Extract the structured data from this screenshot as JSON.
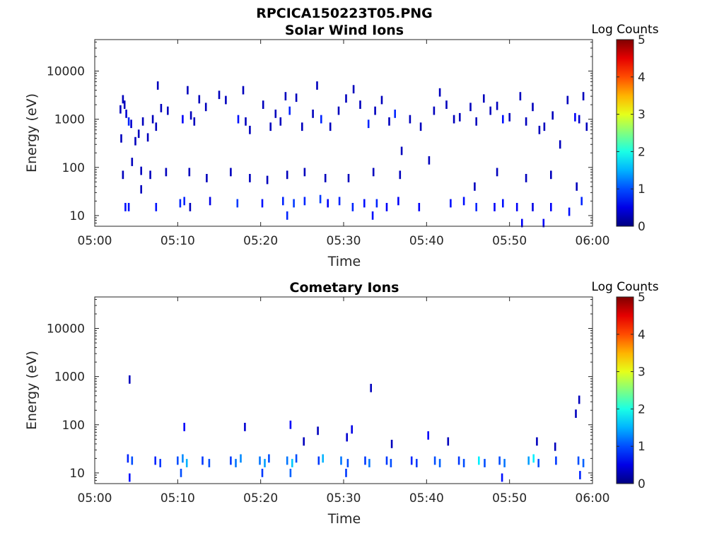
{
  "figure_title": "RPCICA150223T05.PNG",
  "chart_data": [
    {
      "type": "heatmap",
      "title": "Solar Wind Ions",
      "xlabel": "Time",
      "ylabel": "Energy (eV)",
      "x_ticks": [
        "05:00",
        "05:10",
        "05:20",
        "05:30",
        "05:40",
        "05:50",
        "06:00"
      ],
      "xlim_minutes": [
        0,
        60
      ],
      "y_ticks": [
        "10",
        "100",
        "1000",
        "10000"
      ],
      "y_scale": "log",
      "ylim": [
        6,
        45000
      ],
      "colorbar": {
        "label": "Log Counts",
        "ticks": [
          "0",
          "1",
          "2",
          "3",
          "4",
          "5"
        ],
        "range": [
          0,
          5
        ],
        "colormap": "jet"
      },
      "cells": [
        [
          3.1,
          1600,
          0.3
        ],
        [
          3.4,
          2600,
          0.3
        ],
        [
          3.6,
          2000,
          0.3
        ],
        [
          3.8,
          1300,
          0.4
        ],
        [
          4.1,
          900,
          0.8
        ],
        [
          4.4,
          800,
          0.4
        ],
        [
          3.2,
          400,
          0.3
        ],
        [
          4.9,
          350,
          0.3
        ],
        [
          5.3,
          500,
          0.3
        ],
        [
          5.8,
          900,
          0.3
        ],
        [
          6.4,
          420,
          0.3
        ],
        [
          7.0,
          1000,
          0.3
        ],
        [
          7.4,
          700,
          0.3
        ],
        [
          7.6,
          5000,
          0.3
        ],
        [
          8.0,
          1700,
          0.3
        ],
        [
          8.8,
          1500,
          0.3
        ],
        [
          10.6,
          1000,
          0.6
        ],
        [
          11.2,
          4000,
          0.3
        ],
        [
          11.6,
          1200,
          0.3
        ],
        [
          12.0,
          900,
          0.3
        ],
        [
          12.6,
          2600,
          0.3
        ],
        [
          13.4,
          1800,
          0.3
        ],
        [
          15.0,
          3200,
          0.3
        ],
        [
          15.8,
          2500,
          0.3
        ],
        [
          17.3,
          1000,
          0.7
        ],
        [
          17.9,
          4000,
          0.3
        ],
        [
          18.2,
          900,
          0.3
        ],
        [
          18.7,
          600,
          0.3
        ],
        [
          20.3,
          2000,
          0.3
        ],
        [
          21.2,
          700,
          0.3
        ],
        [
          21.8,
          1300,
          0.3
        ],
        [
          22.4,
          900,
          0.3
        ],
        [
          23.0,
          3000,
          0.3
        ],
        [
          23.5,
          1500,
          0.8
        ],
        [
          24.3,
          2800,
          0.3
        ],
        [
          25.0,
          700,
          0.3
        ],
        [
          26.3,
          1300,
          0.3
        ],
        [
          26.8,
          5000,
          0.3
        ],
        [
          27.3,
          1000,
          0.8
        ],
        [
          28.4,
          700,
          0.3
        ],
        [
          29.4,
          1500,
          0.3
        ],
        [
          30.3,
          2700,
          0.3
        ],
        [
          31.2,
          4200,
          0.3
        ],
        [
          32.0,
          2000,
          0.3
        ],
        [
          33.0,
          800,
          0.8
        ],
        [
          33.8,
          1500,
          0.3
        ],
        [
          34.6,
          2500,
          0.3
        ],
        [
          35.5,
          900,
          0.3
        ],
        [
          36.2,
          1300,
          0.8
        ],
        [
          37.0,
          220,
          0.3
        ],
        [
          38.0,
          1000,
          0.3
        ],
        [
          39.3,
          700,
          0.3
        ],
        [
          40.3,
          140,
          0.3
        ],
        [
          40.9,
          1500,
          0.3
        ],
        [
          41.6,
          3600,
          0.3
        ],
        [
          42.4,
          2000,
          0.3
        ],
        [
          43.3,
          1000,
          0.3
        ],
        [
          44.0,
          1100,
          0.3
        ],
        [
          45.3,
          1800,
          0.3
        ],
        [
          46.0,
          900,
          0.3
        ],
        [
          46.9,
          2700,
          0.3
        ],
        [
          47.7,
          1500,
          0.3
        ],
        [
          48.5,
          1900,
          0.3
        ],
        [
          49.2,
          1000,
          0.7
        ],
        [
          50.0,
          1100,
          0.3
        ],
        [
          51.3,
          3000,
          0.3
        ],
        [
          52.0,
          900,
          0.3
        ],
        [
          52.8,
          1800,
          0.3
        ],
        [
          53.6,
          600,
          0.3
        ],
        [
          54.2,
          700,
          0.3
        ],
        [
          55.2,
          1200,
          0.3
        ],
        [
          56.1,
          300,
          0.3
        ],
        [
          57.0,
          2500,
          0.3
        ],
        [
          57.9,
          1100,
          0.6
        ],
        [
          58.4,
          1000,
          0.4
        ],
        [
          58.9,
          3000,
          0.3
        ],
        [
          59.3,
          700,
          0.3
        ],
        [
          3.4,
          70,
          0.3
        ],
        [
          4.5,
          130,
          0.3
        ],
        [
          5.6,
          85,
          0.3
        ],
        [
          6.7,
          70,
          0.3
        ],
        [
          8.6,
          80,
          0.3
        ],
        [
          11.4,
          80,
          0.3
        ],
        [
          13.5,
          60,
          0.3
        ],
        [
          16.4,
          80,
          0.3
        ],
        [
          18.7,
          60,
          0.3
        ],
        [
          20.8,
          55,
          0.3
        ],
        [
          23.2,
          70,
          0.3
        ],
        [
          25.3,
          80,
          0.3
        ],
        [
          27.8,
          60,
          0.3
        ],
        [
          30.6,
          60,
          0.3
        ],
        [
          33.6,
          80,
          0.3
        ],
        [
          36.8,
          70,
          0.3
        ],
        [
          45.8,
          40,
          0.3
        ],
        [
          48.5,
          80,
          0.3
        ],
        [
          52.0,
          60,
          0.3
        ],
        [
          55.0,
          70,
          0.3
        ],
        [
          58.1,
          40,
          0.3
        ],
        [
          3.7,
          15,
          0.7
        ],
        [
          4.1,
          15,
          0.7
        ],
        [
          5.6,
          35,
          0.3
        ],
        [
          7.4,
          15,
          0.7
        ],
        [
          10.3,
          18,
          0.8
        ],
        [
          10.8,
          20,
          0.8
        ],
        [
          11.5,
          15,
          0.3
        ],
        [
          13.9,
          20,
          0.5
        ],
        [
          17.2,
          18,
          0.9
        ],
        [
          20.2,
          18,
          0.7
        ],
        [
          22.7,
          20,
          0.8
        ],
        [
          24.0,
          18,
          0.9
        ],
        [
          25.3,
          20,
          0.8
        ],
        [
          27.2,
          22,
          0.9
        ],
        [
          28.1,
          18,
          0.6
        ],
        [
          29.5,
          20,
          0.8
        ],
        [
          31.1,
          15,
          0.8
        ],
        [
          32.5,
          18,
          0.7
        ],
        [
          34.0,
          18,
          0.8
        ],
        [
          35.2,
          15,
          0.6
        ],
        [
          36.6,
          20,
          0.6
        ],
        [
          39.1,
          15,
          0.6
        ],
        [
          42.9,
          18,
          0.7
        ],
        [
          44.5,
          20,
          0.7
        ],
        [
          46.0,
          15,
          0.8
        ],
        [
          48.2,
          15,
          0.6
        ],
        [
          49.2,
          18,
          0.7
        ],
        [
          50.9,
          15,
          0.6
        ],
        [
          52.8,
          15,
          0.5
        ],
        [
          55.0,
          15,
          0.6
        ],
        [
          57.2,
          12,
          0.7
        ],
        [
          58.7,
          20,
          0.8
        ],
        [
          23.2,
          10,
          0.8
        ],
        [
          33.5,
          10,
          0.7
        ],
        [
          51.5,
          7,
          0.6
        ],
        [
          54.1,
          7,
          0.6
        ]
      ]
    },
    {
      "type": "heatmap",
      "title": "Cometary Ions",
      "xlabel": "Time",
      "ylabel": "Energy (eV)",
      "x_ticks": [
        "05:00",
        "05:10",
        "05:20",
        "05:30",
        "05:40",
        "05:50",
        "06:00"
      ],
      "xlim_minutes": [
        0,
        60
      ],
      "y_ticks": [
        "10",
        "100",
        "1000",
        "10000"
      ],
      "y_scale": "log",
      "ylim": [
        6,
        45000
      ],
      "colorbar": {
        "label": "Log Counts",
        "ticks": [
          "0",
          "1",
          "2",
          "3",
          "4",
          "5"
        ],
        "range": [
          0,
          5
        ],
        "colormap": "jet"
      },
      "cells": [
        [
          4.2,
          870,
          0.3
        ],
        [
          33.3,
          580,
          0.3
        ],
        [
          58.0,
          170,
          0.3
        ],
        [
          58.4,
          330,
          0.3
        ],
        [
          10.8,
          90,
          0.6
        ],
        [
          18.1,
          90,
          0.4
        ],
        [
          23.6,
          100,
          0.6
        ],
        [
          25.2,
          45,
          0.3
        ],
        [
          26.9,
          75,
          0.3
        ],
        [
          30.4,
          55,
          0.4
        ],
        [
          31.0,
          80,
          0.5
        ],
        [
          35.8,
          40,
          0.3
        ],
        [
          40.2,
          60,
          0.6
        ],
        [
          42.6,
          45,
          0.3
        ],
        [
          53.3,
          45,
          0.3
        ],
        [
          55.5,
          35,
          0.3
        ],
        [
          4.0,
          20,
          0.8
        ],
        [
          4.5,
          18,
          1.0
        ],
        [
          7.3,
          18,
          0.8
        ],
        [
          7.9,
          16,
          0.9
        ],
        [
          10.0,
          18,
          1.0
        ],
        [
          10.6,
          20,
          1.3
        ],
        [
          11.1,
          16,
          1.5
        ],
        [
          13.0,
          18,
          0.9
        ],
        [
          13.8,
          16,
          1.0
        ],
        [
          16.4,
          18,
          0.9
        ],
        [
          17.0,
          16,
          1.2
        ],
        [
          17.6,
          20,
          1.3
        ],
        [
          19.9,
          18,
          1.2
        ],
        [
          20.5,
          16,
          1.4
        ],
        [
          21.0,
          20,
          1.0
        ],
        [
          23.2,
          18,
          1.2
        ],
        [
          23.8,
          16,
          1.6
        ],
        [
          24.3,
          20,
          1.0
        ],
        [
          27.0,
          18,
          0.9
        ],
        [
          27.5,
          20,
          1.5
        ],
        [
          29.7,
          18,
          1.2
        ],
        [
          30.5,
          16,
          1.0
        ],
        [
          32.6,
          18,
          0.9
        ],
        [
          33.1,
          16,
          1.2
        ],
        [
          35.2,
          18,
          0.9
        ],
        [
          35.7,
          16,
          1.0
        ],
        [
          38.2,
          18,
          0.8
        ],
        [
          38.8,
          16,
          0.9
        ],
        [
          41.0,
          18,
          1.0
        ],
        [
          41.6,
          16,
          1.1
        ],
        [
          43.9,
          18,
          0.9
        ],
        [
          44.5,
          16,
          1.0
        ],
        [
          46.3,
          18,
          1.8
        ],
        [
          47.0,
          16,
          1.0
        ],
        [
          48.8,
          18,
          1.0
        ],
        [
          49.4,
          16,
          1.2
        ],
        [
          52.3,
          18,
          1.4
        ],
        [
          52.9,
          20,
          1.8
        ],
        [
          53.5,
          16,
          1.0
        ],
        [
          55.6,
          18,
          0.9
        ],
        [
          58.3,
          18,
          1.0
        ],
        [
          58.9,
          16,
          1.1
        ],
        [
          4.2,
          8,
          0.7
        ],
        [
          10.4,
          10,
          1.0
        ],
        [
          20.2,
          10,
          0.9
        ],
        [
          23.6,
          10,
          1.1
        ],
        [
          30.3,
          10,
          0.9
        ],
        [
          49.1,
          8,
          0.7
        ],
        [
          58.5,
          9,
          0.8
        ]
      ]
    }
  ]
}
